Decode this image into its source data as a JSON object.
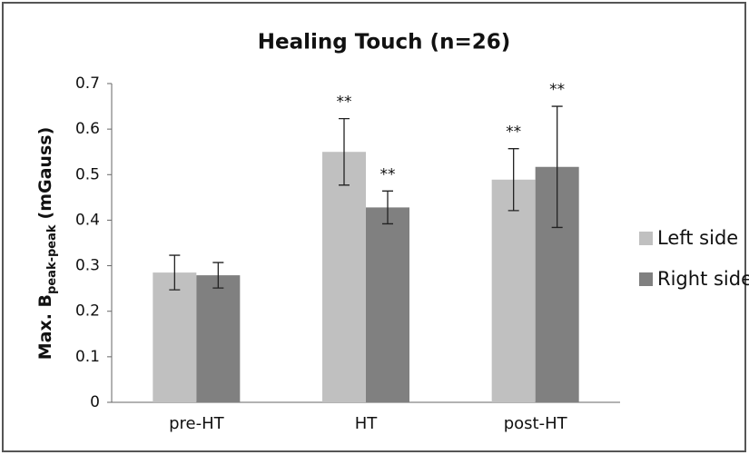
{
  "chart_data": {
    "type": "bar",
    "title": "Healing Touch (n=26)",
    "ylabel": {
      "main": "Max. B",
      "subscript": "peak-peak",
      "unit": "(mGauss)"
    },
    "categories": [
      "pre-HT",
      "HT",
      "post-HT"
    ],
    "series": [
      {
        "name": "Left side",
        "color": "#c0c0c0",
        "values": [
          0.285,
          0.55,
          0.489
        ],
        "errors": [
          0.038,
          0.073,
          0.068
        ],
        "annotations": [
          null,
          "**",
          "**"
        ]
      },
      {
        "name": "Right side",
        "color": "#808080",
        "values": [
          0.279,
          0.428,
          0.517
        ],
        "errors": [
          0.028,
          0.036,
          0.133
        ],
        "annotations": [
          null,
          "**",
          "**"
        ]
      }
    ],
    "ylim": [
      0,
      0.7
    ],
    "yticks": [
      0,
      0.1,
      0.2,
      0.3,
      0.4,
      0.5,
      0.6,
      0.7
    ],
    "grid": false,
    "legend": "right"
  }
}
